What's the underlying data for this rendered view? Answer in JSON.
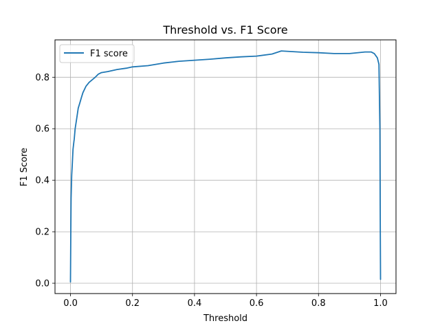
{
  "chart_data": {
    "type": "line",
    "title": "Threshold vs. F1 Score",
    "xlabel": "Threshold",
    "ylabel": "F1 Score",
    "xlim": [
      -0.05,
      1.05
    ],
    "ylim": [
      -0.04,
      0.945
    ],
    "xticks": [
      0.0,
      0.2,
      0.4,
      0.6,
      0.8,
      1.0
    ],
    "xtick_labels": [
      "0.0",
      "0.2",
      "0.4",
      "0.6",
      "0.8",
      "1.0"
    ],
    "yticks": [
      0.0,
      0.2,
      0.4,
      0.6,
      0.8
    ],
    "ytick_labels": [
      "0.0",
      "0.2",
      "0.4",
      "0.6",
      "0.8"
    ],
    "grid": true,
    "legend_position": "top-left",
    "series": [
      {
        "name": "F1 score",
        "color": "#1f77b4",
        "x": [
          0.0,
          0.001,
          0.002,
          0.004,
          0.006,
          0.008,
          0.011,
          0.012,
          0.015,
          0.02,
          0.025,
          0.03,
          0.035,
          0.04,
          0.05,
          0.06,
          0.07,
          0.08,
          0.09,
          0.1,
          0.12,
          0.15,
          0.18,
          0.2,
          0.25,
          0.3,
          0.35,
          0.4,
          0.45,
          0.5,
          0.55,
          0.6,
          0.65,
          0.68,
          0.75,
          0.8,
          0.85,
          0.9,
          0.95,
          0.97,
          0.98,
          0.99,
          0.995,
          0.998,
          0.999,
          1.0
        ],
        "y": [
          0.005,
          0.2,
          0.33,
          0.42,
          0.47,
          0.52,
          0.55,
          0.56,
          0.6,
          0.64,
          0.68,
          0.7,
          0.72,
          0.74,
          0.765,
          0.78,
          0.79,
          0.8,
          0.812,
          0.818,
          0.822,
          0.83,
          0.835,
          0.84,
          0.845,
          0.855,
          0.862,
          0.866,
          0.87,
          0.875,
          0.879,
          0.882,
          0.89,
          0.902,
          0.897,
          0.895,
          0.892,
          0.892,
          0.898,
          0.898,
          0.892,
          0.875,
          0.85,
          0.6,
          0.3,
          0.015
        ]
      }
    ]
  }
}
